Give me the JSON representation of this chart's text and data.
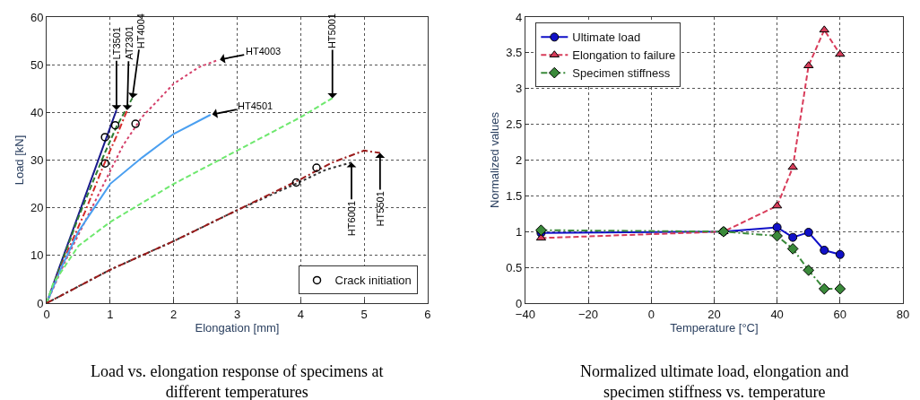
{
  "chart_data": [
    {
      "type": "line",
      "xlabel": "Elongation [mm]",
      "ylabel": "Load [kN]",
      "xlim": [
        0,
        6
      ],
      "ylim": [
        0,
        60
      ],
      "xticks": [
        0,
        1,
        2,
        3,
        4,
        5,
        6
      ],
      "yticks": [
        0,
        10,
        20,
        30,
        40,
        50,
        60
      ],
      "grid": true,
      "legend": "bottom right",
      "series": [
        {
          "color": "#1a1a8c",
          "line_style": "solid",
          "x": [
            0,
            0.2,
            0.5,
            0.8,
            1.1
          ],
          "values": [
            0,
            7.5,
            18.5,
            29.5,
            40.5
          ]
        },
        {
          "color": "#2e7d32",
          "line_style": "dashed",
          "x": [
            0,
            0.5,
            0.9,
            1.1,
            1.35
          ],
          "values": [
            0,
            18,
            31,
            37,
            43
          ]
        },
        {
          "color": "#d42a2a",
          "line_style": "dashdot",
          "x": [
            0,
            0.3,
            0.6,
            0.9,
            1.1,
            1.27
          ],
          "values": [
            0,
            10,
            19,
            29,
            35,
            40.5
          ]
        },
        {
          "color": "#d4406a",
          "line_style": "dotted",
          "x": [
            0,
            0.3,
            0.6,
            0.9,
            1.2,
            1.5,
            2.0,
            2.4,
            2.7
          ],
          "values": [
            0,
            9,
            17,
            25,
            33,
            39,
            46,
            49.5,
            51
          ]
        },
        {
          "color": "#4a9ff0",
          "line_style": "solid",
          "x": [
            0,
            0.25,
            0.5,
            0.8,
            1.0,
            1.5,
            2.0,
            2.58
          ],
          "values": [
            0,
            8,
            15,
            21,
            25,
            30.5,
            35.5,
            39.5
          ]
        },
        {
          "color": "#6ee86e",
          "line_style": "dashed",
          "x": [
            0,
            0.1,
            0.5,
            1,
            2,
            3,
            4,
            4.5
          ],
          "values": [
            0,
            4,
            12,
            17,
            25,
            32,
            39,
            43
          ]
        },
        {
          "color": "#333333",
          "line_style": "dotted",
          "x": [
            0,
            1,
            2,
            3,
            4,
            4.4,
            4.8
          ],
          "values": [
            0,
            7,
            13,
            19.5,
            25.5,
            28,
            29.5
          ]
        },
        {
          "color": "#9b1c1c",
          "line_style": "dashdot",
          "x": [
            0,
            1,
            2,
            3,
            4,
            4.5,
            5,
            5.25
          ],
          "values": [
            0,
            7,
            13,
            19.5,
            26,
            29.5,
            32,
            31.5
          ]
        },
        {
          "type": "scatter",
          "name": "Crack initiation",
          "color": "#000000",
          "marker": "circle",
          "x": [
            0.92,
            0.92,
            1.08,
            1.4,
            3.93,
            4.25
          ],
          "values": [
            34.8,
            29.3,
            37.3,
            37.6,
            25.3,
            28.4
          ]
        }
      ],
      "annotations": [
        {
          "text": "LT3501",
          "x": 1.1,
          "y": 40.5
        },
        {
          "text": "AT2301",
          "x": 1.27,
          "y": 40.5
        },
        {
          "text": "HT4004",
          "x": 1.35,
          "y": 43
        },
        {
          "text": "HT4003",
          "x": 2.7,
          "y": 51
        },
        {
          "text": "HT4501",
          "x": 2.58,
          "y": 39.5
        },
        {
          "text": "HT5001",
          "x": 4.5,
          "y": 43
        },
        {
          "text": "HT6001",
          "x": 4.8,
          "y": 29.5
        },
        {
          "text": "HT5501",
          "x": 5.25,
          "y": 31.5
        },
        "Load vs. elongation response of specimens at different temperatures"
      ]
    },
    {
      "type": "line",
      "xlabel": "Temperature [°C]",
      "ylabel": "Normalized values",
      "xlim": [
        -40,
        80
      ],
      "ylim": [
        0,
        4
      ],
      "xticks": [
        -40,
        -20,
        0,
        20,
        40,
        60,
        80
      ],
      "yticks": [
        0,
        0.5,
        1,
        1.5,
        2,
        2.5,
        3,
        3.5,
        4
      ],
      "grid": true,
      "legend": "top left",
      "x": [
        -35,
        23,
        40,
        45,
        50,
        55,
        60
      ],
      "series": [
        {
          "name": "Ultimate load",
          "color": "#1010c8",
          "line_style": "solid",
          "marker": "circle",
          "values": [
            0.98,
            1.0,
            1.06,
            0.92,
            0.99,
            0.74,
            0.68
          ]
        },
        {
          "name": "Elongation to failure",
          "color": "#d83c5a",
          "line_style": "dashed",
          "marker": "triangle",
          "values": [
            0.91,
            1.0,
            1.36,
            1.9,
            3.32,
            3.82,
            3.48
          ]
        },
        {
          "name": "Specimen stiffness",
          "color": "#3a8a3a",
          "line_style": "dashdot",
          "marker": "diamond",
          "values": [
            1.02,
            1.0,
            0.94,
            0.76,
            0.46,
            0.2,
            0.2
          ]
        }
      ],
      "annotations": [
        "Normalized ultimate load, elongation and specimen stiffness vs. temperature"
      ]
    }
  ]
}
